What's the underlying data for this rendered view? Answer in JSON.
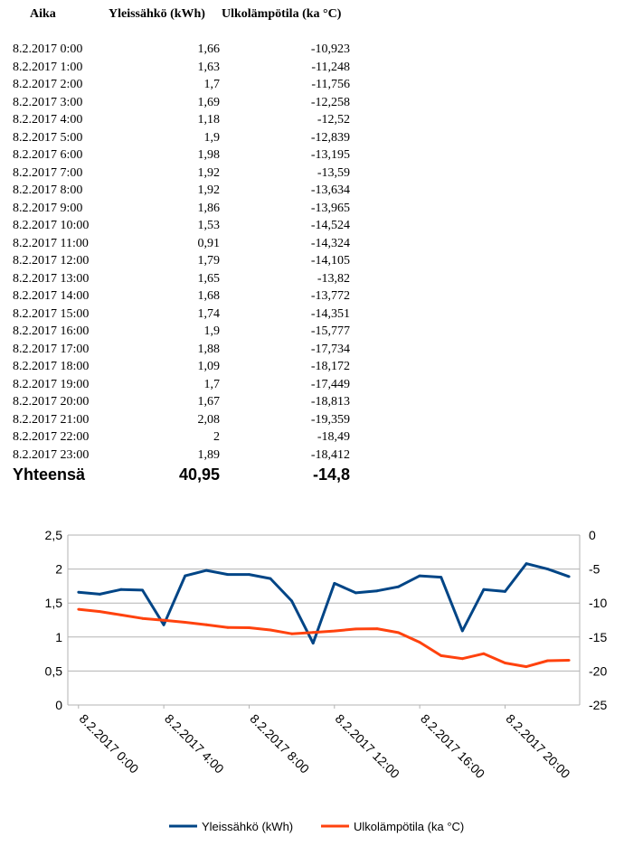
{
  "table": {
    "headers": {
      "time": "Aika",
      "kwh": "Yleissähkö (kWh)",
      "temp": "Ulkolämpötila (ka °C)"
    },
    "rows": [
      [
        "8.2.2017 0:00",
        "1,66",
        "-10,923"
      ],
      [
        "8.2.2017 1:00",
        "1,63",
        "-11,248"
      ],
      [
        "8.2.2017 2:00",
        "1,7",
        "-11,756"
      ],
      [
        "8.2.2017 3:00",
        "1,69",
        "-12,258"
      ],
      [
        "8.2.2017 4:00",
        "1,18",
        "-12,52"
      ],
      [
        "8.2.2017 5:00",
        "1,9",
        "-12,839"
      ],
      [
        "8.2.2017 6:00",
        "1,98",
        "-13,195"
      ],
      [
        "8.2.2017 7:00",
        "1,92",
        "-13,59"
      ],
      [
        "8.2.2017 8:00",
        "1,92",
        "-13,634"
      ],
      [
        "8.2.2017 9:00",
        "1,86",
        "-13,965"
      ],
      [
        "8.2.2017 10:00",
        "1,53",
        "-14,524"
      ],
      [
        "8.2.2017 11:00",
        "0,91",
        "-14,324"
      ],
      [
        "8.2.2017 12:00",
        "1,79",
        "-14,105"
      ],
      [
        "8.2.2017 13:00",
        "1,65",
        "-13,82"
      ],
      [
        "8.2.2017 14:00",
        "1,68",
        "-13,772"
      ],
      [
        "8.2.2017 15:00",
        "1,74",
        "-14,351"
      ],
      [
        "8.2.2017 16:00",
        "1,9",
        "-15,777"
      ],
      [
        "8.2.2017 17:00",
        "1,88",
        "-17,734"
      ],
      [
        "8.2.2017 18:00",
        "1,09",
        "-18,172"
      ],
      [
        "8.2.2017 19:00",
        "1,7",
        "-17,449"
      ],
      [
        "8.2.2017 20:00",
        "1,67",
        "-18,813"
      ],
      [
        "8.2.2017 21:00",
        "2,08",
        "-19,359"
      ],
      [
        "8.2.2017 22:00",
        "2",
        "-18,49"
      ],
      [
        "8.2.2017 23:00",
        "1,89",
        "-18,412"
      ]
    ],
    "total": {
      "label": "Yhteensä",
      "kwh": "40,95",
      "temp": "-14,8"
    }
  },
  "chart_data": {
    "type": "line",
    "x": [
      "8.2.2017 0:00",
      "8.2.2017 1:00",
      "8.2.2017 2:00",
      "8.2.2017 3:00",
      "8.2.2017 4:00",
      "8.2.2017 5:00",
      "8.2.2017 6:00",
      "8.2.2017 7:00",
      "8.2.2017 8:00",
      "8.2.2017 9:00",
      "8.2.2017 10:00",
      "8.2.2017 11:00",
      "8.2.2017 12:00",
      "8.2.2017 13:00",
      "8.2.2017 14:00",
      "8.2.2017 15:00",
      "8.2.2017 16:00",
      "8.2.2017 17:00",
      "8.2.2017 18:00",
      "8.2.2017 19:00",
      "8.2.2017 20:00",
      "8.2.2017 21:00",
      "8.2.2017 22:00",
      "8.2.2017 23:00"
    ],
    "x_tick_labels": [
      "8.2.2017 0:00",
      "8.2.2017 4:00",
      "8.2.2017 8:00",
      "8.2.2017 12:00",
      "8.2.2017 16:00",
      "8.2.2017 20:00"
    ],
    "series": [
      {
        "name": "Yleissähkö (kWh)",
        "axis": "left",
        "color": "#004586",
        "values": [
          1.66,
          1.63,
          1.7,
          1.69,
          1.18,
          1.9,
          1.98,
          1.92,
          1.92,
          1.86,
          1.53,
          0.91,
          1.79,
          1.65,
          1.68,
          1.74,
          1.9,
          1.88,
          1.09,
          1.7,
          1.67,
          2.08,
          2.0,
          1.89
        ]
      },
      {
        "name": "Ulkolämpötila (ka °C)",
        "axis": "right",
        "color": "#ff420e",
        "values": [
          -10.923,
          -11.248,
          -11.756,
          -12.258,
          -12.52,
          -12.839,
          -13.195,
          -13.59,
          -13.634,
          -13.965,
          -14.524,
          -14.324,
          -14.105,
          -13.82,
          -13.772,
          -14.351,
          -15.777,
          -17.734,
          -18.172,
          -17.449,
          -18.813,
          -19.359,
          -18.49,
          -18.412
        ]
      }
    ],
    "y_left": {
      "min": 0,
      "max": 2.5,
      "ticks": [
        "0",
        "0,5",
        "1",
        "1,5",
        "2",
        "2,5"
      ]
    },
    "y_right": {
      "min": -25,
      "max": 0,
      "ticks": [
        "-25",
        "-20",
        "-15",
        "-10",
        "-5",
        "0"
      ]
    },
    "grid": true,
    "legend": "bottom"
  }
}
